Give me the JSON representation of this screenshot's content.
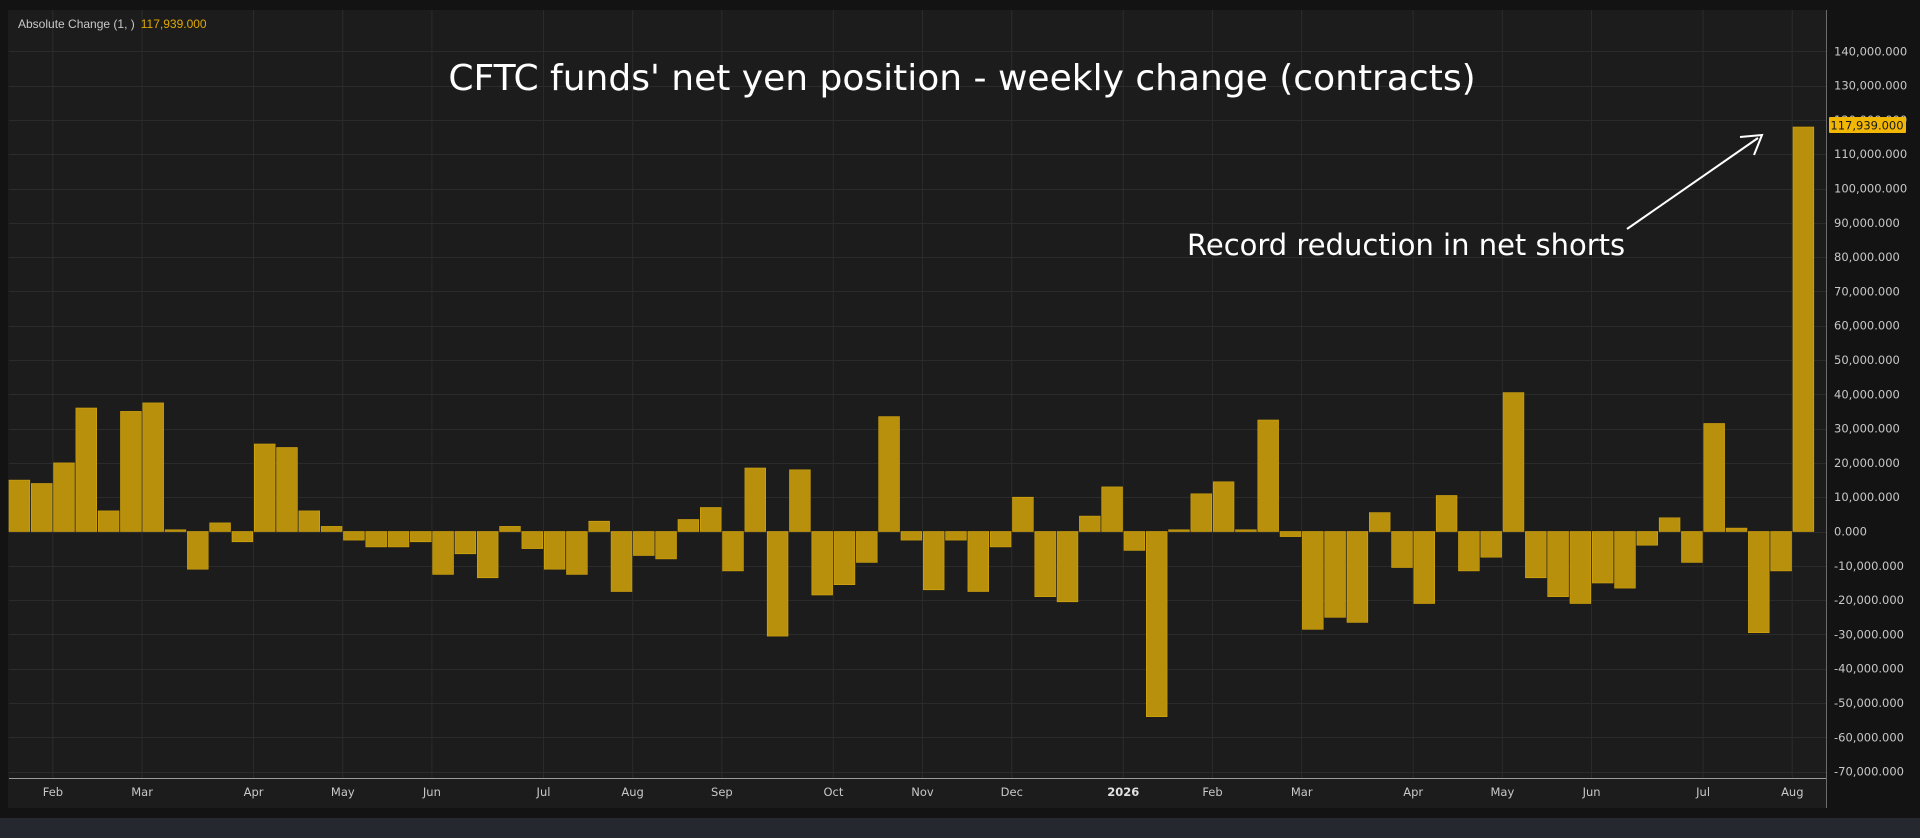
{
  "legend": {
    "label": "Absolute Change (1, )",
    "value": "117,939.000"
  },
  "last_value_tag": "117,939.000",
  "colors": {
    "bar": "#b8900b",
    "bar_edge": "#d6a70f",
    "tag": "#f2b705",
    "legend_value": "#e0a800",
    "grid": "#2b2b2b",
    "background": "#1c1c1c"
  },
  "chart_data": {
    "type": "bar",
    "title": "CFTC funds' net yen position - weekly change (contracts)",
    "annotation": "Record reduction in net shorts",
    "ylim": [
      -72000,
      150000
    ],
    "grid": true,
    "y_ticks": [
      "140,000.000",
      "130,000.000",
      "120,000.000",
      "110,000.000",
      "100,000.000",
      "90,000.000",
      "80,000.000",
      "70,000.000",
      "60,000.000",
      "50,000.000",
      "40,000.000",
      "30,000.000",
      "20,000.000",
      "10,000.000",
      "0.000",
      "-10,000.000",
      "-20,000.000",
      "-30,000.000",
      "-40,000.000",
      "-50,000.000",
      "-60,000.000",
      "-70,000.000"
    ],
    "x_ticks": [
      {
        "label": "Feb",
        "week": 1.5
      },
      {
        "label": "Mar",
        "week": 5.5
      },
      {
        "label": "Apr",
        "week": 10.5
      },
      {
        "label": "May",
        "week": 14.5
      },
      {
        "label": "Jun",
        "week": 18.5
      },
      {
        "label": "Jul",
        "week": 23.5
      },
      {
        "label": "Aug",
        "week": 27.5
      },
      {
        "label": "Sep",
        "week": 31.5
      },
      {
        "label": "Oct",
        "week": 36.5
      },
      {
        "label": "Nov",
        "week": 40.5
      },
      {
        "label": "Dec",
        "week": 44.5
      },
      {
        "label": "2026",
        "week": 49.5,
        "bold": true
      },
      {
        "label": "Feb",
        "week": 53.5
      },
      {
        "label": "Mar",
        "week": 57.5
      },
      {
        "label": "Apr",
        "week": 62.5
      },
      {
        "label": "May",
        "week": 66.5
      },
      {
        "label": "Jun",
        "week": 70.5
      },
      {
        "label": "Jul",
        "week": 75.5
      },
      {
        "label": "Aug",
        "week": 79.5
      }
    ],
    "values": [
      15000,
      14000,
      20000,
      36000,
      6000,
      35000,
      37500,
      500,
      -11000,
      2500,
      -3000,
      25500,
      24500,
      6000,
      1500,
      -2500,
      -4500,
      -4500,
      -3000,
      -12500,
      -6500,
      -13500,
      1500,
      -5000,
      -11000,
      -12500,
      3000,
      -17500,
      -7000,
      -8000,
      3500,
      7000,
      -11500,
      18500,
      -30500,
      18000,
      -18500,
      -15500,
      -9000,
      33500,
      -2500,
      -17000,
      -2500,
      -17500,
      -4500,
      10000,
      -19000,
      -20500,
      4500,
      13000,
      -5500,
      -54000,
      500,
      11000,
      14500,
      500,
      32500,
      -1500,
      -28500,
      -25000,
      -26500,
      5500,
      -10500,
      -21000,
      10500,
      -11500,
      -7500,
      40500,
      -13500,
      -19000,
      -21000,
      -15000,
      -16500,
      -4000,
      4000,
      -9000,
      31500,
      1000,
      -29500,
      -11500,
      117939
    ]
  }
}
